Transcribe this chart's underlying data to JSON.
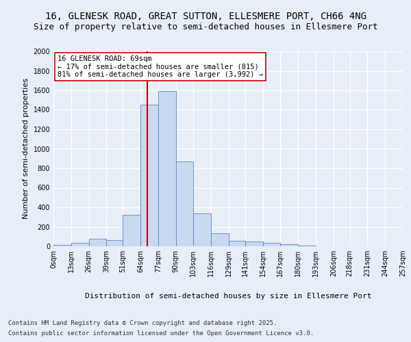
{
  "title_line1": "16, GLENESK ROAD, GREAT SUTTON, ELLESMERE PORT, CH66 4NG",
  "title_line2": "Size of property relative to semi-detached houses in Ellesmere Port",
  "xlabel": "Distribution of semi-detached houses by size in Ellesmere Port",
  "ylabel": "Number of semi-detached properties",
  "bin_labels": [
    "0sqm",
    "13sqm",
    "26sqm",
    "39sqm",
    "51sqm",
    "64sqm",
    "77sqm",
    "90sqm",
    "103sqm",
    "116sqm",
    "129sqm",
    "141sqm",
    "154sqm",
    "167sqm",
    "180sqm",
    "193sqm",
    "206sqm",
    "218sqm",
    "231sqm",
    "244sqm",
    "257sqm"
  ],
  "bar_heights": [
    15,
    35,
    75,
    65,
    320,
    1450,
    1590,
    870,
    340,
    130,
    55,
    50,
    35,
    20,
    10,
    0,
    0,
    0,
    0,
    0
  ],
  "bin_edges": [
    0,
    13,
    26,
    39,
    51,
    64,
    77,
    90,
    103,
    116,
    129,
    141,
    154,
    167,
    180,
    193,
    206,
    218,
    231,
    244,
    257
  ],
  "bar_color": "#c9d9f0",
  "bar_edge_color": "#5a8ac6",
  "vline_x": 69,
  "vline_color": "#cc0000",
  "annotation_title": "16 GLENESK ROAD: 69sqm",
  "annotation_line1": "← 17% of semi-detached houses are smaller (815)",
  "annotation_line2": "81% of semi-detached houses are larger (3,992) →",
  "annotation_box_color": "#ffffff",
  "annotation_box_edge": "#cc0000",
  "ylim": [
    0,
    2000
  ],
  "yticks": [
    0,
    200,
    400,
    600,
    800,
    1000,
    1200,
    1400,
    1600,
    1800,
    2000
  ],
  "footer_line1": "Contains HM Land Registry data © Crown copyright and database right 2025.",
  "footer_line2": "Contains public sector information licensed under the Open Government Licence v3.0.",
  "bg_color": "#e8eef8",
  "grid_color": "#ffffff",
  "title_fontsize": 10,
  "subtitle_fontsize": 9,
  "axis_label_fontsize": 8,
  "tick_fontsize": 7,
  "annotation_fontsize": 7.5,
  "footer_fontsize": 6.5
}
